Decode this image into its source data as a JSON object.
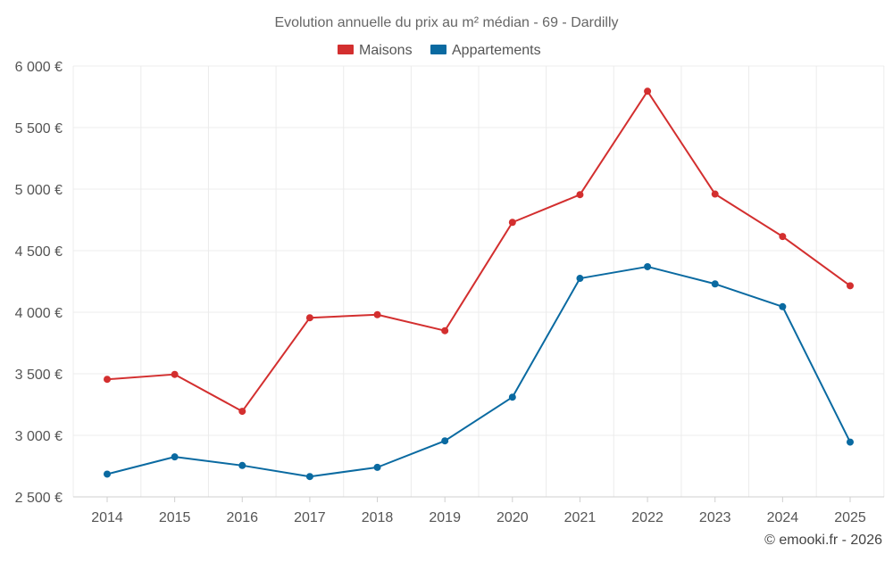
{
  "chart_data": {
    "type": "line",
    "title": "Evolution annuelle du prix au m² médian - 69 - Dardilly",
    "categories": [
      "2014",
      "2015",
      "2016",
      "2017",
      "2018",
      "2019",
      "2020",
      "2021",
      "2022",
      "2023",
      "2024",
      "2025"
    ],
    "series": [
      {
        "name": "Maisons",
        "color": "#d32f2f",
        "values": [
          3455,
          3495,
          3195,
          3955,
          3980,
          3850,
          4730,
          4955,
          5795,
          4960,
          4615,
          4215
        ]
      },
      {
        "name": "Appartements",
        "color": "#0a6aa1",
        "values": [
          2685,
          2825,
          2755,
          2665,
          2740,
          2955,
          3310,
          4275,
          4370,
          4230,
          4045,
          2945
        ]
      }
    ],
    "ylim": [
      2500,
      6000
    ],
    "yticks": [
      {
        "value": 6000,
        "label": "6 000 €"
      },
      {
        "value": 5500,
        "label": "5 500 €"
      },
      {
        "value": 5000,
        "label": "5 000 €"
      },
      {
        "value": 4500,
        "label": "4 500 €"
      },
      {
        "value": 4000,
        "label": "4 000 €"
      },
      {
        "value": 3500,
        "label": "3 500 €"
      },
      {
        "value": 3000,
        "label": "3 000 €"
      },
      {
        "value": 2500,
        "label": "2 500 €"
      }
    ],
    "grid": true,
    "legend_position": "top-center",
    "xlabel": "",
    "ylabel": ""
  },
  "credit": "© emooki.fr - 2026"
}
